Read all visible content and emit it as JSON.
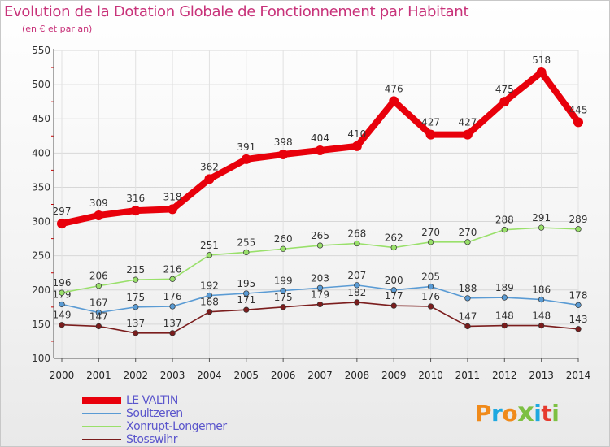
{
  "header": {
    "title": "Evolution de la Dotation Globale de Fonctionnement par Habitant",
    "subtitle": "(en € et par an)"
  },
  "logo": {
    "text": "Proxiti",
    "colors": [
      "#f08a1a",
      "#1ea8e0",
      "#f08a1a",
      "#7dc043",
      "#1ea8e0",
      "#e63b2e",
      "#7dc043"
    ]
  },
  "chart_data": {
    "type": "line",
    "x": [
      "2000",
      "2001",
      "2002",
      "2003",
      "2004",
      "2005",
      "2006",
      "2007",
      "2008",
      "2009",
      "2010",
      "2011",
      "2012",
      "2013",
      "2014"
    ],
    "ylim": [
      100,
      550
    ],
    "yticks": [
      "100",
      "150",
      "200",
      "250",
      "300",
      "350",
      "400",
      "450",
      "500",
      "550"
    ],
    "grid": true,
    "legend_position": "bottom-left",
    "series": [
      {
        "name": "LE VALTIN",
        "color": "#e8000b",
        "emphasis": true,
        "values": [
          297,
          309,
          316,
          318,
          362,
          391,
          398,
          404,
          410,
          476,
          427,
          427,
          475,
          518,
          445
        ]
      },
      {
        "name": "Soultzeren",
        "color": "#5a9bd4",
        "emphasis": false,
        "values": [
          179,
          167,
          175,
          176,
          192,
          195,
          199,
          203,
          207,
          200,
          205,
          188,
          189,
          186,
          178
        ]
      },
      {
        "name": "Xonrupt-Longemer",
        "color": "#99e06a",
        "emphasis": false,
        "values": [
          196,
          206,
          215,
          216,
          251,
          255,
          260,
          265,
          268,
          262,
          270,
          270,
          288,
          291,
          289
        ]
      },
      {
        "name": "Stosswihr",
        "color": "#7b1d1d",
        "emphasis": false,
        "values": [
          149,
          147,
          137,
          137,
          168,
          171,
          175,
          179,
          182,
          177,
          176,
          147,
          148,
          148,
          143
        ]
      }
    ]
  }
}
